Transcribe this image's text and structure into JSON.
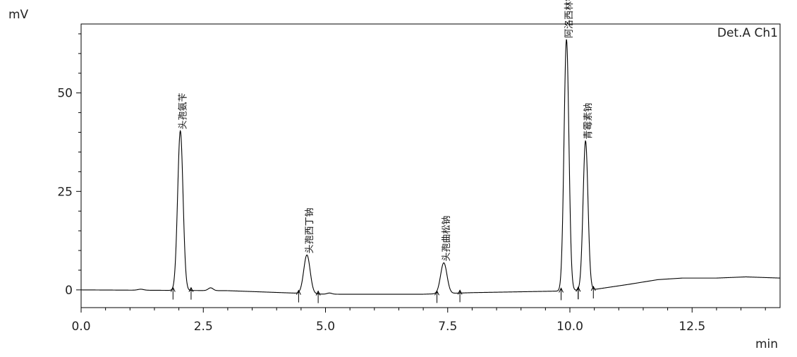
{
  "chart_data": {
    "type": "line",
    "title": "",
    "detector": "Det.A Ch1",
    "xlabel": "min",
    "ylabel": "mV",
    "xlim": [
      0.0,
      14.3
    ],
    "ylim": [
      -4.5,
      67.5
    ],
    "x_ticks": [
      0.0,
      2.5,
      5.0,
      7.5,
      10.0,
      12.5
    ],
    "x_tick_labels": [
      "0.0",
      "2.5",
      "5.0",
      "7.5",
      "10.0",
      "12.5"
    ],
    "y_ticks": [
      0,
      25,
      50
    ],
    "y_tick_labels": [
      "0",
      "25",
      "50"
    ],
    "grid": false,
    "peaks": [
      {
        "label": "头孢氨苄",
        "rt": 2.03,
        "height": 40.5,
        "width": 0.055,
        "start": 1.88,
        "end": 2.25
      },
      {
        "label": "头孢西丁钠",
        "rt": 4.62,
        "height": 9.8,
        "width": 0.065,
        "start": 4.45,
        "end": 4.85
      },
      {
        "label": "头孢曲松钠",
        "rt": 7.42,
        "height": 7.8,
        "width": 0.065,
        "start": 7.28,
        "end": 7.75
      },
      {
        "label": "阿洛西林钠",
        "rt": 9.93,
        "height": 63.8,
        "width": 0.05,
        "start": 9.82,
        "end": 10.17
      },
      {
        "label": "青霉素钠",
        "rt": 10.32,
        "height": 37.8,
        "width": 0.05,
        "start": 10.17,
        "end": 10.48
      }
    ],
    "minor_peaks": [
      {
        "rt": 1.22,
        "height": 0.25,
        "width": 0.06
      },
      {
        "rt": 2.65,
        "height": 0.7,
        "width": 0.05
      },
      {
        "rt": 5.08,
        "height": 0.3,
        "width": 0.05
      }
    ],
    "baseline": [
      {
        "x": 0.0,
        "y": 0.0
      },
      {
        "x": 3.0,
        "y": -0.2
      },
      {
        "x": 5.0,
        "y": -1.1
      },
      {
        "x": 7.0,
        "y": -1.1
      },
      {
        "x": 8.0,
        "y": -0.7
      },
      {
        "x": 9.8,
        "y": -0.3
      },
      {
        "x": 10.55,
        "y": 0.2
      },
      {
        "x": 11.2,
        "y": 1.4
      },
      {
        "x": 11.8,
        "y": 2.6
      },
      {
        "x": 12.3,
        "y": 3.0
      },
      {
        "x": 13.0,
        "y": 3.0
      },
      {
        "x": 13.6,
        "y": 3.3
      },
      {
        "x": 14.3,
        "y": 3.0
      }
    ]
  }
}
